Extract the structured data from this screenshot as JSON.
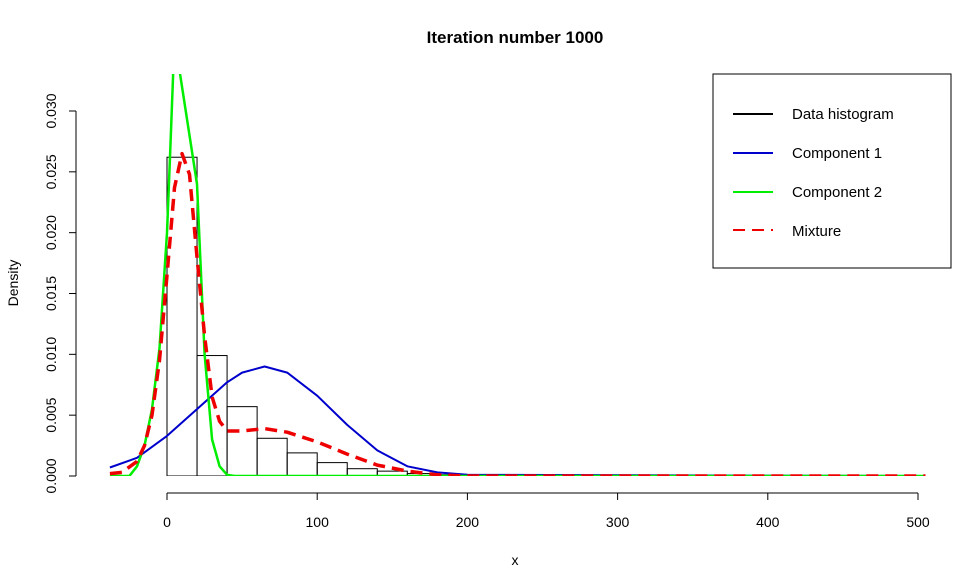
{
  "chart_data": {
    "type": "histogram+line",
    "title": "Iteration number 1000",
    "xlabel": "x",
    "ylabel": "Density",
    "xlim": [
      -40,
      505
    ],
    "ylim": [
      0,
      0.031
    ],
    "x_ticks": [
      0,
      100,
      200,
      300,
      400,
      500
    ],
    "x_tick_labels": [
      "0",
      "100",
      "200",
      "300",
      "400",
      "500"
    ],
    "y_ticks": [
      0.0,
      0.005,
      0.01,
      0.015,
      0.02,
      0.025,
      0.03
    ],
    "y_tick_labels": [
      "0.000",
      "0.005",
      "0.010",
      "0.015",
      "0.020",
      "0.025",
      "0.030"
    ],
    "legend": {
      "placement": "top-right",
      "entries": [
        {
          "label": "Data histogram",
          "color": "#000000",
          "dashed": false
        },
        {
          "label": "Component 1",
          "color": "#0000cc",
          "dashed": false
        },
        {
          "label": "Component 2",
          "color": "#00ee00",
          "dashed": false
        },
        {
          "label": "Mixture",
          "color": "#ee0000",
          "dashed": true
        }
      ]
    },
    "histogram": {
      "bin_edges": [
        0,
        20,
        40,
        60,
        80,
        100,
        120,
        140,
        160,
        180,
        200
      ],
      "densities": [
        0.0262,
        0.0099,
        0.0057,
        0.0031,
        0.0019,
        0.0011,
        0.0006,
        0.0004,
        0.0002,
        0.0001
      ]
    },
    "series": [
      {
        "name": "Component 1",
        "color": "#0000cc",
        "x": [
          -38,
          -20,
          0,
          20,
          40,
          50,
          65,
          80,
          100,
          120,
          140,
          160,
          180,
          200,
          505
        ],
        "y": [
          0.0007,
          0.0015,
          0.0033,
          0.0055,
          0.0077,
          0.0085,
          0.009,
          0.0085,
          0.0066,
          0.0042,
          0.0021,
          0.0008,
          0.0003,
          0.0001,
          0.0
        ]
      },
      {
        "name": "Component 2",
        "color": "#00ee00",
        "x": [
          -38,
          -25,
          -20,
          -15,
          -10,
          -5,
          0,
          2,
          5,
          20,
          25,
          30,
          35,
          40,
          45,
          505
        ],
        "y": [
          0.0,
          0.0,
          0.0008,
          0.0025,
          0.0055,
          0.0105,
          0.02,
          0.0262,
          0.036,
          0.024,
          0.01,
          0.003,
          0.0008,
          0.0001,
          0.0,
          0.0
        ]
      },
      {
        "name": "Mixture",
        "color": "#ee0000",
        "x": [
          -38,
          -30,
          -20,
          -15,
          -10,
          -5,
          0,
          5,
          10,
          15,
          20,
          25,
          30,
          35,
          40,
          50,
          65,
          80,
          100,
          120,
          140,
          160,
          180,
          200,
          250,
          300,
          400,
          505
        ],
        "y": [
          0.0002,
          0.0003,
          0.0012,
          0.0025,
          0.005,
          0.0095,
          0.0165,
          0.0237,
          0.0265,
          0.0248,
          0.018,
          0.0115,
          0.0065,
          0.0045,
          0.0037,
          0.0037,
          0.0039,
          0.0036,
          0.0028,
          0.0018,
          0.0009,
          0.0004,
          0.0001,
          0.0,
          0.0,
          0.0,
          0.0,
          0.0
        ]
      }
    ]
  }
}
